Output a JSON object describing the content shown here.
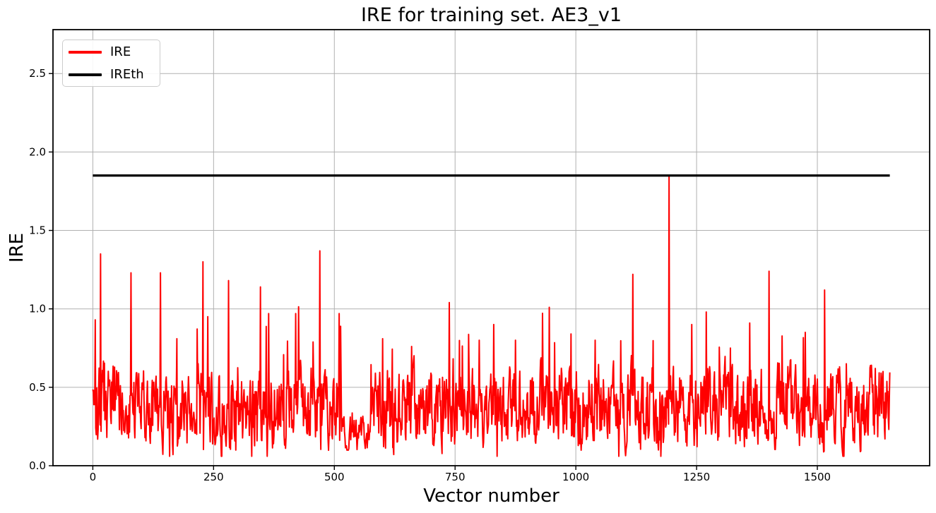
{
  "figure": {
    "background": "#ffffff"
  },
  "chart_data": {
    "type": "line",
    "title": "IRE for training set. AE3_v1",
    "xlabel": "Vector number",
    "ylabel": "IRE",
    "xlim": [
      -82.5,
      1732.5
    ],
    "ylim": [
      0,
      2.78
    ],
    "xticks": [
      0,
      250,
      500,
      750,
      1000,
      1250,
      1500
    ],
    "yticks": [
      0.0,
      0.5,
      1.0,
      1.5,
      2.0,
      2.5
    ],
    "grid": true,
    "grid_color": "#b0b0b0",
    "spine_color": "#000000",
    "legend": {
      "position": "upper-left",
      "entries": [
        {
          "label": "IRE",
          "color": "#ff0000"
        },
        {
          "label": "IREth",
          "color": "#000000"
        }
      ]
    },
    "series": [
      {
        "name": "IRE",
        "color": "#ff0000",
        "style": "noisy-line",
        "linewidth": 2,
        "x_start": 0,
        "x_end": 1650,
        "baseline_mean": 0.38,
        "baseline_min": 0.06,
        "baseline_max": 1.03,
        "noise_seed": 20,
        "noise_step": 0.42,
        "noise_persistence": 0.45,
        "burst_probability": 0.022,
        "low_regions": [
          {
            "start": 515,
            "end": 575,
            "scale": 0.45
          },
          {
            "start": 1385,
            "end": 1415,
            "scale": 0.5
          }
        ],
        "peaks": [
          [
            5,
            0.93
          ],
          [
            16,
            1.35
          ],
          [
            79,
            1.23
          ],
          [
            140,
            1.23
          ],
          [
            228,
            1.3
          ],
          [
            238,
            0.95
          ],
          [
            281,
            1.18
          ],
          [
            347,
            1.14
          ],
          [
            364,
            0.97
          ],
          [
            420,
            0.97
          ],
          [
            470,
            1.37
          ],
          [
            510,
            0.97
          ],
          [
            600,
            0.81
          ],
          [
            660,
            0.76
          ],
          [
            738,
            1.04
          ],
          [
            800,
            0.8
          ],
          [
            830,
            0.9
          ],
          [
            875,
            0.8
          ],
          [
            945,
            1.01
          ],
          [
            990,
            0.84
          ],
          [
            1040,
            0.8
          ],
          [
            1118,
            1.22
          ],
          [
            1193,
            1.85
          ],
          [
            1240,
            0.9
          ],
          [
            1270,
            0.98
          ],
          [
            1320,
            0.75
          ],
          [
            1360,
            0.91
          ],
          [
            1400,
            1.24
          ],
          [
            1475,
            0.85
          ],
          [
            1515,
            1.12
          ],
          [
            1560,
            0.65
          ],
          [
            1620,
            0.62
          ]
        ]
      },
      {
        "name": "IREth",
        "color": "#000000",
        "style": "hline",
        "value": 1.85,
        "x_start": 0,
        "x_end": 1650,
        "linewidth": 3.2
      }
    ]
  }
}
